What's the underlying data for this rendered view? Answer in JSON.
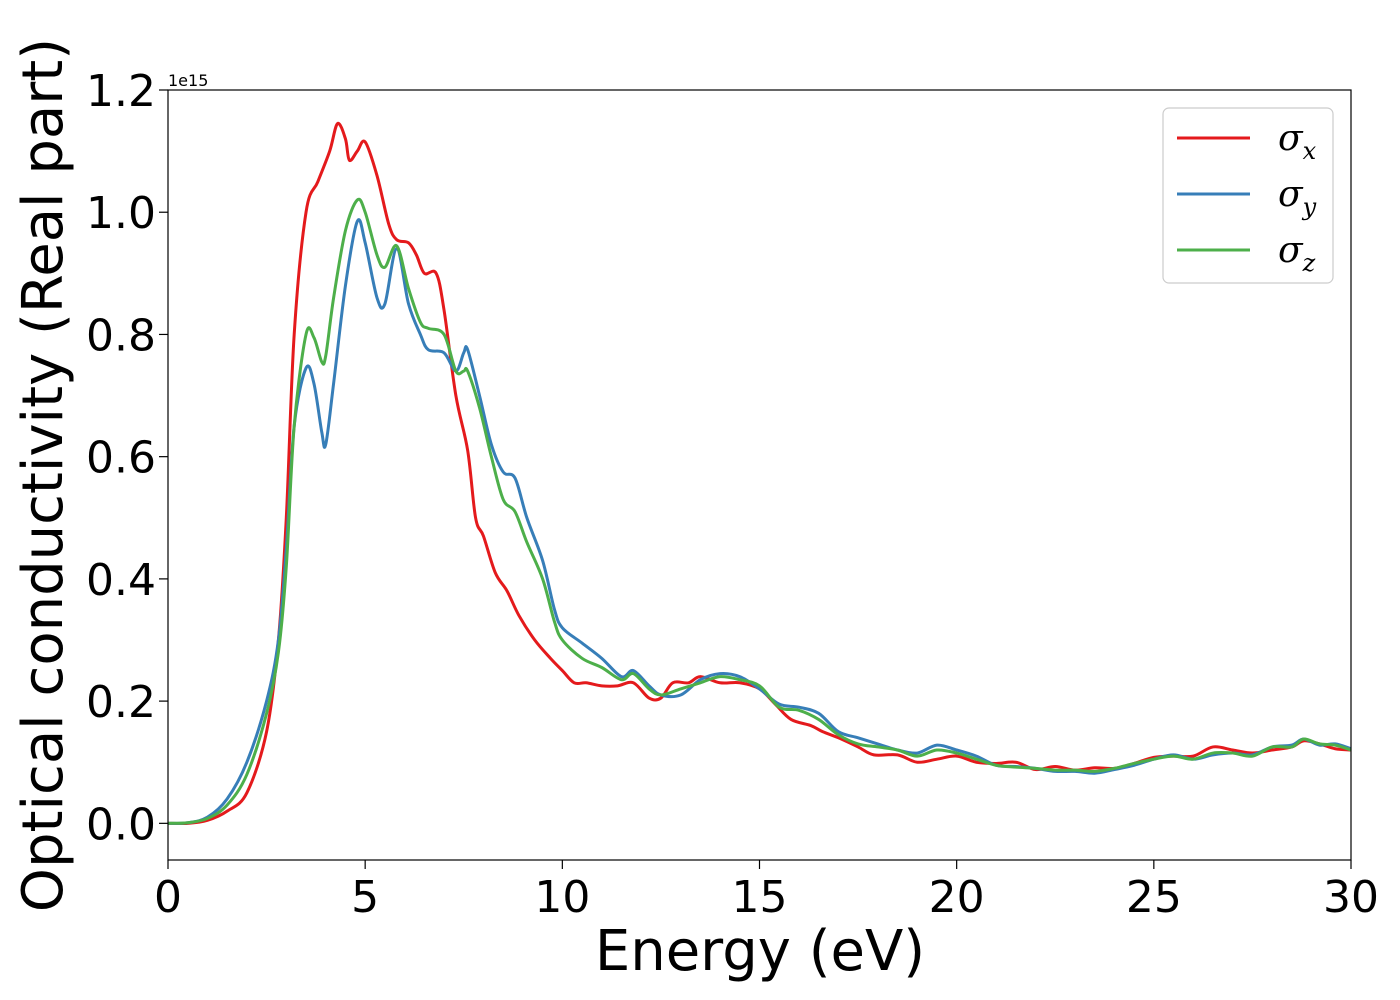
{
  "chart_data": {
    "type": "line",
    "title": "",
    "xlabel": "Energy (eV)",
    "ylabel": "Optical conductivity (Real part)",
    "y_offset_text": "1e15",
    "xlim": [
      0,
      30
    ],
    "ylim": [
      -0.06,
      1.2
    ],
    "xticks": [
      0,
      5,
      10,
      15,
      20,
      25,
      30
    ],
    "xtick_labels": [
      "0",
      "5",
      "10",
      "15",
      "20",
      "25",
      "30"
    ],
    "yticks": [
      0.0,
      0.2,
      0.4,
      0.6,
      0.8,
      1.0,
      1.2
    ],
    "ytick_labels": [
      "0.0",
      "0.2",
      "0.4",
      "0.6",
      "0.8",
      "1.0",
      "1.2"
    ],
    "grid": false,
    "legend_position": "top-right",
    "series": [
      {
        "name": "σx",
        "symbol": "σ",
        "subscript": "x",
        "color": "#e41a1c",
        "points": [
          [
            0,
            0
          ],
          [
            0.5,
            0.0
          ],
          [
            1.0,
            0.005
          ],
          [
            1.5,
            0.02
          ],
          [
            2.0,
            0.05
          ],
          [
            2.5,
            0.15
          ],
          [
            2.8,
            0.3
          ],
          [
            3.0,
            0.5
          ],
          [
            3.2,
            0.8
          ],
          [
            3.5,
            1.0
          ],
          [
            3.8,
            1.05
          ],
          [
            4.1,
            1.1
          ],
          [
            4.3,
            1.145
          ],
          [
            4.5,
            1.12
          ],
          [
            4.6,
            1.085
          ],
          [
            4.8,
            1.1
          ],
          [
            5.0,
            1.115
          ],
          [
            5.3,
            1.06
          ],
          [
            5.6,
            0.98
          ],
          [
            5.8,
            0.955
          ],
          [
            6.1,
            0.95
          ],
          [
            6.3,
            0.93
          ],
          [
            6.5,
            0.9
          ],
          [
            6.8,
            0.9
          ],
          [
            7.0,
            0.84
          ],
          [
            7.3,
            0.7
          ],
          [
            7.6,
            0.61
          ],
          [
            7.8,
            0.5
          ],
          [
            8.0,
            0.47
          ],
          [
            8.3,
            0.41
          ],
          [
            8.6,
            0.38
          ],
          [
            8.9,
            0.34
          ],
          [
            9.3,
            0.3
          ],
          [
            9.7,
            0.27
          ],
          [
            10.0,
            0.25
          ],
          [
            10.3,
            0.23
          ],
          [
            10.6,
            0.23
          ],
          [
            11.0,
            0.225
          ],
          [
            11.4,
            0.225
          ],
          [
            11.8,
            0.23
          ],
          [
            12.2,
            0.205
          ],
          [
            12.5,
            0.205
          ],
          [
            12.8,
            0.23
          ],
          [
            13.2,
            0.23
          ],
          [
            13.5,
            0.24
          ],
          [
            14.0,
            0.23
          ],
          [
            14.5,
            0.23
          ],
          [
            15.0,
            0.22
          ],
          [
            15.4,
            0.195
          ],
          [
            15.8,
            0.17
          ],
          [
            16.3,
            0.16
          ],
          [
            16.6,
            0.15
          ],
          [
            17.0,
            0.14
          ],
          [
            17.5,
            0.125
          ],
          [
            17.9,
            0.112
          ],
          [
            18.5,
            0.112
          ],
          [
            19.0,
            0.1
          ],
          [
            19.5,
            0.105
          ],
          [
            20.0,
            0.11
          ],
          [
            20.5,
            0.1
          ],
          [
            21.0,
            0.098
          ],
          [
            21.5,
            0.1
          ],
          [
            22.0,
            0.088
          ],
          [
            22.5,
            0.093
          ],
          [
            23.0,
            0.087
          ],
          [
            23.5,
            0.091
          ],
          [
            24.0,
            0.09
          ],
          [
            24.5,
            0.098
          ],
          [
            25.0,
            0.108
          ],
          [
            25.5,
            0.11
          ],
          [
            26.0,
            0.11
          ],
          [
            26.5,
            0.125
          ],
          [
            27.0,
            0.12
          ],
          [
            27.5,
            0.115
          ],
          [
            28.0,
            0.12
          ],
          [
            28.5,
            0.125
          ],
          [
            28.8,
            0.135
          ],
          [
            29.2,
            0.13
          ],
          [
            29.6,
            0.122
          ],
          [
            30.0,
            0.12
          ]
        ]
      },
      {
        "name": "σy",
        "symbol": "σ",
        "subscript": "y",
        "color": "#377eb8",
        "points": [
          [
            0,
            0
          ],
          [
            0.5,
            0.001
          ],
          [
            1.0,
            0.01
          ],
          [
            1.5,
            0.04
          ],
          [
            2.0,
            0.1
          ],
          [
            2.5,
            0.2
          ],
          [
            2.8,
            0.3
          ],
          [
            3.0,
            0.45
          ],
          [
            3.2,
            0.65
          ],
          [
            3.5,
            0.745
          ],
          [
            3.7,
            0.72
          ],
          [
            3.9,
            0.64
          ],
          [
            4.0,
            0.62
          ],
          [
            4.2,
            0.72
          ],
          [
            4.5,
            0.88
          ],
          [
            4.8,
            0.985
          ],
          [
            5.0,
            0.95
          ],
          [
            5.3,
            0.86
          ],
          [
            5.5,
            0.85
          ],
          [
            5.8,
            0.94
          ],
          [
            6.1,
            0.85
          ],
          [
            6.4,
            0.8
          ],
          [
            6.6,
            0.775
          ],
          [
            7.0,
            0.77
          ],
          [
            7.3,
            0.74
          ],
          [
            7.5,
            0.77
          ],
          [
            7.6,
            0.775
          ],
          [
            7.9,
            0.7
          ],
          [
            8.2,
            0.62
          ],
          [
            8.5,
            0.575
          ],
          [
            8.8,
            0.565
          ],
          [
            9.1,
            0.5
          ],
          [
            9.5,
            0.43
          ],
          [
            9.8,
            0.35
          ],
          [
            10.0,
            0.32
          ],
          [
            10.5,
            0.295
          ],
          [
            11.0,
            0.27
          ],
          [
            11.5,
            0.24
          ],
          [
            11.8,
            0.25
          ],
          [
            12.2,
            0.225
          ],
          [
            12.5,
            0.21
          ],
          [
            13.0,
            0.21
          ],
          [
            13.5,
            0.235
          ],
          [
            14.0,
            0.245
          ],
          [
            14.5,
            0.24
          ],
          [
            15.0,
            0.22
          ],
          [
            15.5,
            0.195
          ],
          [
            16.0,
            0.19
          ],
          [
            16.5,
            0.18
          ],
          [
            17.0,
            0.15
          ],
          [
            17.5,
            0.14
          ],
          [
            18.0,
            0.13
          ],
          [
            18.5,
            0.12
          ],
          [
            19.0,
            0.115
          ],
          [
            19.5,
            0.128
          ],
          [
            20.0,
            0.12
          ],
          [
            20.5,
            0.11
          ],
          [
            21.0,
            0.095
          ],
          [
            21.5,
            0.093
          ],
          [
            22.0,
            0.09
          ],
          [
            22.5,
            0.085
          ],
          [
            23.0,
            0.085
          ],
          [
            23.5,
            0.082
          ],
          [
            24.0,
            0.088
          ],
          [
            24.5,
            0.095
          ],
          [
            25.0,
            0.105
          ],
          [
            25.5,
            0.112
          ],
          [
            26.0,
            0.105
          ],
          [
            26.5,
            0.112
          ],
          [
            27.0,
            0.115
          ],
          [
            27.5,
            0.112
          ],
          [
            28.0,
            0.125
          ],
          [
            28.5,
            0.128
          ],
          [
            28.8,
            0.138
          ],
          [
            29.2,
            0.128
          ],
          [
            29.6,
            0.13
          ],
          [
            30.0,
            0.122
          ]
        ]
      },
      {
        "name": "σz",
        "symbol": "σ",
        "subscript": "z",
        "color": "#4daf4a",
        "points": [
          [
            0,
            0
          ],
          [
            0.5,
            0.001
          ],
          [
            1.0,
            0.008
          ],
          [
            1.5,
            0.03
          ],
          [
            2.0,
            0.08
          ],
          [
            2.5,
            0.18
          ],
          [
            2.8,
            0.28
          ],
          [
            3.0,
            0.42
          ],
          [
            3.2,
            0.65
          ],
          [
            3.5,
            0.8
          ],
          [
            3.7,
            0.795
          ],
          [
            3.9,
            0.755
          ],
          [
            4.0,
            0.765
          ],
          [
            4.2,
            0.86
          ],
          [
            4.5,
            0.97
          ],
          [
            4.8,
            1.02
          ],
          [
            5.0,
            1.0
          ],
          [
            5.3,
            0.93
          ],
          [
            5.5,
            0.91
          ],
          [
            5.8,
            0.945
          ],
          [
            6.1,
            0.875
          ],
          [
            6.4,
            0.82
          ],
          [
            6.6,
            0.81
          ],
          [
            7.0,
            0.8
          ],
          [
            7.3,
            0.74
          ],
          [
            7.5,
            0.74
          ],
          [
            7.6,
            0.74
          ],
          [
            7.9,
            0.68
          ],
          [
            8.2,
            0.6
          ],
          [
            8.5,
            0.53
          ],
          [
            8.8,
            0.51
          ],
          [
            9.1,
            0.46
          ],
          [
            9.5,
            0.4
          ],
          [
            9.8,
            0.33
          ],
          [
            10.0,
            0.3
          ],
          [
            10.5,
            0.27
          ],
          [
            11.0,
            0.255
          ],
          [
            11.5,
            0.235
          ],
          [
            11.8,
            0.245
          ],
          [
            12.2,
            0.22
          ],
          [
            12.5,
            0.21
          ],
          [
            13.0,
            0.22
          ],
          [
            13.5,
            0.23
          ],
          [
            14.0,
            0.24
          ],
          [
            14.5,
            0.235
          ],
          [
            15.0,
            0.225
          ],
          [
            15.5,
            0.19
          ],
          [
            16.0,
            0.185
          ],
          [
            16.5,
            0.17
          ],
          [
            17.0,
            0.145
          ],
          [
            17.5,
            0.13
          ],
          [
            18.0,
            0.125
          ],
          [
            18.5,
            0.12
          ],
          [
            19.0,
            0.11
          ],
          [
            19.5,
            0.12
          ],
          [
            20.0,
            0.115
          ],
          [
            20.5,
            0.105
          ],
          [
            21.0,
            0.095
          ],
          [
            21.5,
            0.092
          ],
          [
            22.0,
            0.09
          ],
          [
            22.5,
            0.087
          ],
          [
            23.0,
            0.087
          ],
          [
            23.5,
            0.085
          ],
          [
            24.0,
            0.09
          ],
          [
            24.5,
            0.098
          ],
          [
            25.0,
            0.105
          ],
          [
            25.5,
            0.11
          ],
          [
            26.0,
            0.105
          ],
          [
            26.5,
            0.115
          ],
          [
            27.0,
            0.115
          ],
          [
            27.5,
            0.11
          ],
          [
            28.0,
            0.125
          ],
          [
            28.5,
            0.125
          ],
          [
            28.8,
            0.138
          ],
          [
            29.2,
            0.13
          ],
          [
            29.6,
            0.128
          ],
          [
            30.0,
            0.12
          ]
        ]
      }
    ]
  }
}
